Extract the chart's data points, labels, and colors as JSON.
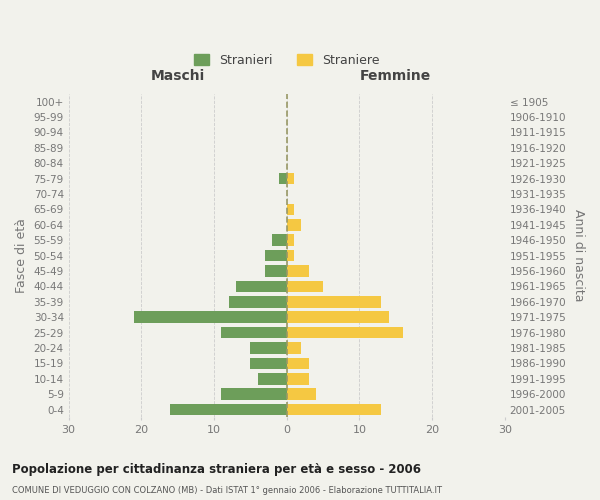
{
  "age_groups": [
    "100+",
    "95-99",
    "90-94",
    "85-89",
    "80-84",
    "75-79",
    "70-74",
    "65-69",
    "60-64",
    "55-59",
    "50-54",
    "45-49",
    "40-44",
    "35-39",
    "30-34",
    "25-29",
    "20-24",
    "15-19",
    "10-14",
    "5-9",
    "0-4"
  ],
  "birth_years": [
    "≤ 1905",
    "1906-1910",
    "1911-1915",
    "1916-1920",
    "1921-1925",
    "1926-1930",
    "1931-1935",
    "1936-1940",
    "1941-1945",
    "1946-1950",
    "1951-1955",
    "1956-1960",
    "1961-1965",
    "1966-1970",
    "1971-1975",
    "1976-1980",
    "1981-1985",
    "1986-1990",
    "1991-1995",
    "1996-2000",
    "2001-2005"
  ],
  "males": [
    0,
    0,
    0,
    0,
    0,
    1,
    0,
    0,
    0,
    2,
    3,
    3,
    7,
    8,
    21,
    9,
    5,
    5,
    4,
    9,
    16
  ],
  "females": [
    0,
    0,
    0,
    0,
    0,
    1,
    0,
    1,
    2,
    1,
    1,
    3,
    5,
    13,
    14,
    16,
    2,
    3,
    3,
    4,
    13
  ],
  "male_color": "#6d9e5a",
  "female_color": "#f5c842",
  "background_color": "#f2f2ec",
  "title": "Popolazione per cittadinanza straniera per età e sesso - 2006",
  "subtitle": "COMUNE DI VEDUGGIO CON COLZANO (MB) - Dati ISTAT 1° gennaio 2006 - Elaborazione TUTTITALIA.IT",
  "xlabel_left": "Maschi",
  "xlabel_right": "Femmine",
  "ylabel_left": "Fasce di età",
  "ylabel_right": "Anni di nascita",
  "legend_male": "Stranieri",
  "legend_female": "Straniere",
  "xlim": 30,
  "grid_color": "#cccccc",
  "text_color": "#777777",
  "centerline_color": "#999966"
}
